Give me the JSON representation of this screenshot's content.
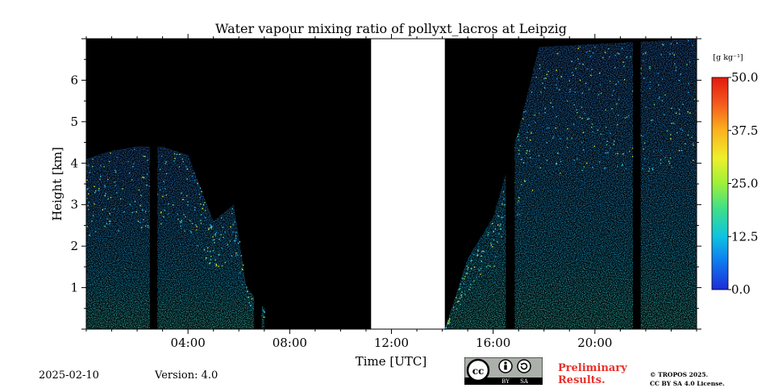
{
  "chart_data": {
    "type": "heatmap",
    "title": "Water vapour mixing ratio of pollyxt_lacros at Leipzig",
    "xlabel": "Time [UTC]",
    "ylabel": "Height [km]",
    "x_range_hours": [
      0,
      24
    ],
    "y_range_km": [
      0,
      7
    ],
    "x_ticks": [
      "04:00",
      "08:00",
      "12:00",
      "16:00",
      "20:00"
    ],
    "x_tick_hours": [
      4,
      8,
      12,
      16,
      20
    ],
    "y_ticks": [
      "1",
      "2",
      "3",
      "4",
      "5",
      "6"
    ],
    "y_tick_values": [
      1,
      2,
      3,
      4,
      5,
      6
    ],
    "colorbar": {
      "unit": "[g kg⁻¹]",
      "min": 0.0,
      "max": 50.0,
      "ticks": [
        "0.0",
        "12.5",
        "25.0",
        "37.5",
        "50.0"
      ],
      "colormap": [
        "#1e2bd8",
        "#0ea5f0",
        "#2fd3b0",
        "#6ee84a",
        "#e6ee2a",
        "#fbb21e",
        "#f4541d",
        "#e21a12"
      ]
    },
    "no_data_interval_hours": [
      11.2,
      14.1
    ],
    "vertical_gaps_hours": [
      [
        2.5,
        2.8
      ],
      [
        6.6,
        6.9
      ],
      [
        16.5,
        16.85
      ],
      [
        21.5,
        21.8
      ]
    ],
    "signal_top_km": [
      {
        "t": 0.0,
        "h": 4.1
      },
      {
        "t": 1.0,
        "h": 4.3
      },
      {
        "t": 2.0,
        "h": 4.4
      },
      {
        "t": 3.0,
        "h": 4.4
      },
      {
        "t": 4.0,
        "h": 4.2
      },
      {
        "t": 5.0,
        "h": 2.6
      },
      {
        "t": 5.8,
        "h": 3.0
      },
      {
        "t": 6.3,
        "h": 1.0
      },
      {
        "t": 7.0,
        "h": 0.5
      },
      {
        "t": 14.1,
        "h": 0.0
      },
      {
        "t": 15.0,
        "h": 1.7
      },
      {
        "t": 16.0,
        "h": 2.7
      },
      {
        "t": 17.0,
        "h": 4.8
      },
      {
        "t": 17.8,
        "h": 6.8
      },
      {
        "t": 24.0,
        "h": 7.0
      }
    ]
  },
  "footer": {
    "date": "2025-02-10",
    "version": "Version: 4.0",
    "preliminary_line1": "Preliminary",
    "preliminary_line2": "Results.",
    "license_line1": "© TROPOS 2025.",
    "license_line2": "CC BY SA 4.0 License.",
    "cc_badge": [
      "cc-icon",
      "by-icon",
      "sa-icon"
    ],
    "cc_by": "BY",
    "cc_sa": "SA"
  }
}
